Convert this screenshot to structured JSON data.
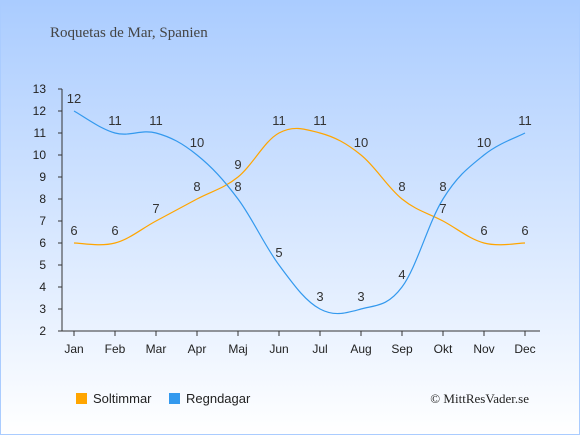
{
  "chart_data": {
    "type": "line",
    "title": "Roquetas de Mar, Spanien",
    "categories": [
      "Jan",
      "Feb",
      "Mar",
      "Apr",
      "Maj",
      "Jun",
      "Jul",
      "Aug",
      "Sep",
      "Okt",
      "Nov",
      "Dec"
    ],
    "series": [
      {
        "name": "Soltimmar",
        "color": "#ffa500",
        "values": [
          6,
          6,
          7,
          8,
          9,
          11,
          11,
          10,
          8,
          7,
          6,
          6
        ]
      },
      {
        "name": "Regndagar",
        "color": "#3399ee",
        "values": [
          12,
          11,
          11,
          10,
          8,
          5,
          3,
          3,
          4,
          8,
          10,
          11
        ]
      }
    ],
    "ylim": [
      2,
      13
    ],
    "yticks": [
      2,
      3,
      4,
      5,
      6,
      7,
      8,
      9,
      10,
      11,
      12,
      13
    ],
    "grid": false,
    "legend": "bottom-left",
    "xlabel": "",
    "ylabel": ""
  },
  "credit": "© MittResVader.se",
  "colors": {
    "background_top": "#aaccff",
    "background_bottom": "#ffffff",
    "border": "#aaccff"
  }
}
